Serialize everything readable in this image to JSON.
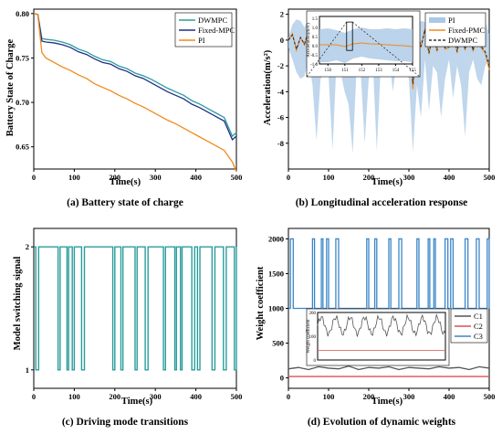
{
  "chart_data": [
    {
      "id": "a",
      "type": "line",
      "caption": "(a) Battery state of charge",
      "xlabel": "Time(s)",
      "ylabel": "Battery State of Charge",
      "xlim": [
        0,
        500
      ],
      "ylim": [
        0.625,
        0.805
      ],
      "xticks": [
        0,
        100,
        200,
        300,
        400,
        500
      ],
      "yticks": [
        0.65,
        0.7,
        0.75,
        0.8
      ],
      "yticklabels": [
        "0.65",
        "0.70",
        "0.75",
        "0.80"
      ],
      "legend": "top-right",
      "series": [
        {
          "name": "DWMPC",
          "color": "#2a9d9b",
          "x": [
            0,
            10,
            20,
            30,
            50,
            70,
            90,
            110,
            130,
            150,
            170,
            190,
            210,
            230,
            250,
            270,
            290,
            310,
            330,
            350,
            370,
            390,
            410,
            430,
            450,
            470,
            490,
            500
          ],
          "y": [
            0.8,
            0.799,
            0.772,
            0.771,
            0.77,
            0.768,
            0.765,
            0.76,
            0.757,
            0.752,
            0.748,
            0.746,
            0.741,
            0.738,
            0.733,
            0.73,
            0.726,
            0.721,
            0.716,
            0.712,
            0.708,
            0.702,
            0.698,
            0.693,
            0.688,
            0.683,
            0.662,
            0.666
          ]
        },
        {
          "name": "Fixed-MPC",
          "color": "#1f2f8a",
          "x": [
            0,
            10,
            20,
            30,
            50,
            70,
            90,
            110,
            130,
            150,
            170,
            190,
            210,
            230,
            250,
            270,
            290,
            310,
            330,
            350,
            370,
            390,
            410,
            430,
            450,
            470,
            490,
            500
          ],
          "y": [
            0.8,
            0.799,
            0.769,
            0.768,
            0.767,
            0.765,
            0.762,
            0.757,
            0.754,
            0.749,
            0.745,
            0.743,
            0.738,
            0.735,
            0.73,
            0.727,
            0.722,
            0.717,
            0.712,
            0.708,
            0.704,
            0.698,
            0.694,
            0.689,
            0.684,
            0.679,
            0.658,
            0.662
          ]
        },
        {
          "name": "PI",
          "color": "#f08a1c",
          "x": [
            0,
            10,
            20,
            30,
            50,
            70,
            90,
            110,
            130,
            150,
            170,
            190,
            210,
            230,
            250,
            270,
            290,
            310,
            330,
            350,
            370,
            390,
            410,
            430,
            450,
            470,
            490,
            500
          ],
          "y": [
            0.8,
            0.799,
            0.756,
            0.75,
            0.745,
            0.74,
            0.736,
            0.731,
            0.727,
            0.721,
            0.717,
            0.713,
            0.708,
            0.704,
            0.699,
            0.695,
            0.69,
            0.685,
            0.68,
            0.676,
            0.671,
            0.666,
            0.661,
            0.656,
            0.651,
            0.646,
            0.633,
            0.622
          ]
        }
      ]
    },
    {
      "id": "b",
      "type": "line",
      "caption": "(b) Longitudinal acceleration response",
      "xlabel": "Time(s)",
      "ylabel": "Acceleration(m/s²)",
      "xlim": [
        0,
        500
      ],
      "ylim": [
        -10,
        2.4
      ],
      "xticks": [
        0,
        100,
        200,
        300,
        400,
        500
      ],
      "yticks": [
        -8,
        -6,
        -4,
        -2,
        0,
        2
      ],
      "legend": "top-right",
      "series": [
        {
          "name": "PI",
          "color": "#aac8e6",
          "style": "band",
          "x": [
            0,
            10,
            20,
            30,
            40,
            50,
            60,
            70,
            80,
            90,
            100,
            110,
            120,
            130,
            140,
            150,
            160,
            170,
            180,
            190,
            200,
            210,
            220,
            230,
            240,
            250,
            260,
            270,
            280,
            290,
            300,
            310,
            320,
            330,
            340,
            350,
            360,
            370,
            380,
            390,
            400,
            410,
            420,
            430,
            440,
            450,
            460,
            470,
            480,
            490,
            500
          ],
          "lower": [
            -0.6,
            -1.5,
            -2.5,
            -3.0,
            -2.8,
            -1.5,
            -3.5,
            -7.8,
            -3.0,
            -2.5,
            -2.8,
            -8.5,
            -1.5,
            -2.5,
            -4.0,
            -5.0,
            -8.8,
            -2.0,
            -2.5,
            -8.0,
            -3.0,
            -1.5,
            -8.6,
            -2.0,
            -2.5,
            -1.0,
            -4.0,
            -1.5,
            -2.0,
            -2.5,
            -3.0,
            -8.7,
            -3.5,
            -6.0,
            -1.5,
            -5.5,
            -2.0,
            -2.5,
            -6.0,
            -3.0,
            -1.5,
            -4.5,
            -2.0,
            -3.5,
            -7.5,
            -2.5,
            -1.5,
            -3.0,
            -3.5,
            -2.0,
            -1.5
          ],
          "upper": [
            0.2,
            1.2,
            1.6,
            1.5,
            1.0,
            1.6,
            1.5,
            1.4,
            1.0,
            1.6,
            1.3,
            1.4,
            1.0,
            1.6,
            0.9,
            1.3,
            1.6,
            1.0,
            1.5,
            1.2,
            1.6,
            1.4,
            1.0,
            1.6,
            1.5,
            1.0,
            1.5,
            1.6,
            1.0,
            1.4,
            1.5,
            1.6,
            1.0,
            1.5,
            1.4,
            1.6,
            1.0,
            1.5,
            1.6,
            1.2,
            1.0,
            1.6,
            1.4,
            1.2,
            1.6,
            1.5,
            1.0,
            1.6,
            1.5,
            1.4,
            0.5
          ]
        },
        {
          "name": "Fixed-PMC",
          "color": "#f08a1c",
          "x": [
            0,
            10,
            20,
            30,
            40,
            50,
            60,
            70,
            80,
            90,
            100,
            110,
            120,
            130,
            140,
            150,
            160,
            170,
            180,
            190,
            200,
            210,
            220,
            230,
            240,
            250,
            260,
            270,
            280,
            290,
            300,
            310,
            320,
            330,
            340,
            350,
            360,
            370,
            380,
            390,
            400,
            410,
            420,
            430,
            440,
            450,
            460,
            470,
            480,
            490,
            500
          ],
          "y": [
            0,
            0.5,
            -0.8,
            0.2,
            -0.4,
            0.8,
            -1.0,
            1.0,
            -0.3,
            0.6,
            -1.2,
            0.9,
            -0.5,
            0.4,
            -1.0,
            -0.6,
            0.7,
            -0.8,
            0.8,
            -1.4,
            0.9,
            -0.6,
            0.8,
            -1.6,
            1.0,
            -0.8,
            0.6,
            -0.8,
            1.0,
            -0.9,
            0.5,
            -3.8,
            0.8,
            -0.6,
            0.9,
            -1.1,
            0.6,
            -0.9,
            1.0,
            -0.7,
            -0.6,
            0.8,
            -1.0,
            0.9,
            -0.8,
            0.6,
            -0.9,
            1.0,
            -0.6,
            -1.0,
            -2.3
          ]
        },
        {
          "name": "DWMPC",
          "color": "#333333",
          "dash": "3,2",
          "x": [
            0,
            10,
            20,
            30,
            40,
            50,
            60,
            70,
            80,
            90,
            100,
            110,
            120,
            130,
            140,
            150,
            160,
            170,
            180,
            190,
            200,
            210,
            220,
            230,
            240,
            250,
            260,
            270,
            280,
            290,
            300,
            310,
            320,
            330,
            340,
            350,
            360,
            370,
            380,
            390,
            400,
            410,
            420,
            430,
            440,
            450,
            460,
            470,
            480,
            490,
            500
          ],
          "y": [
            0,
            0.4,
            -0.7,
            0.2,
            -0.3,
            0.7,
            -0.9,
            0.9,
            -0.3,
            0.5,
            -1.0,
            0.8,
            -0.4,
            0.3,
            -0.9,
            -0.5,
            0.6,
            -0.7,
            0.7,
            -1.2,
            0.8,
            -0.5,
            0.7,
            -1.4,
            0.9,
            -0.7,
            0.5,
            -0.7,
            0.9,
            -0.8,
            0.4,
            -3.4,
            0.7,
            -0.5,
            0.8,
            -1.0,
            0.5,
            -0.8,
            0.9,
            -0.6,
            -0.5,
            0.7,
            -0.9,
            0.8,
            -0.7,
            0.5,
            -0.8,
            0.9,
            -0.5,
            -0.9,
            -2.0
          ]
        }
      ],
      "inset": {
        "ylabel": "Acceleration(m/s²)",
        "xlim": [
          149.5,
          155
        ],
        "ylim": [
          -1,
          1.6
        ],
        "xticks": [
          150,
          151,
          152,
          153,
          154,
          155
        ],
        "yticks": [
          -1.0,
          -0.5,
          0.0,
          0.5,
          1.0,
          1.5
        ],
        "yticklabels": [
          "-1.0",
          "-0.5",
          "0.0",
          "0.5",
          "1.0",
          "1.5"
        ],
        "x": [
          149.5,
          150,
          150.5,
          151,
          151.5,
          152,
          152.5,
          153,
          153.5,
          154,
          154.5,
          155
        ],
        "y": [
          0.05,
          0.05,
          0.05,
          -0.05,
          0.1,
          0.15,
          0.1,
          0.08,
          0.05,
          0.02,
          0.0,
          -0.05
        ],
        "lower": [
          -0.9,
          -0.9,
          -0.8,
          -0.95,
          -0.7,
          -0.6,
          -0.7,
          -0.75,
          -0.8,
          -0.85,
          -0.85,
          -0.9
        ],
        "upper": [
          0.9,
          0.95,
          0.85,
          0.7,
          0.9,
          1.0,
          0.9,
          0.9,
          0.95,
          0.9,
          0.95,
          0.9
        ]
      }
    },
    {
      "id": "c",
      "type": "line",
      "caption": "(c) Driving mode transitions",
      "xlabel": "Time(s)",
      "ylabel": "Model switching signal",
      "xlim": [
        0,
        500
      ],
      "ylim": [
        0.85,
        2.15
      ],
      "xticks": [
        0,
        100,
        200,
        300,
        400,
        500
      ],
      "yticks": [
        1,
        2
      ],
      "series": [
        {
          "name": "",
          "color": "#2a9d9b",
          "step": true,
          "x": [
            0,
            5,
            12,
            25,
            60,
            65,
            82,
            86,
            95,
            100,
            118,
            125,
            195,
            200,
            215,
            220,
            250,
            255,
            275,
            282,
            320,
            325,
            348,
            352,
            362,
            366,
            390,
            397,
            404,
            410,
            440,
            447,
            468,
            475,
            495,
            500
          ],
          "y": [
            2,
            1,
            2,
            2,
            1,
            2,
            1,
            2,
            1,
            2,
            1,
            2,
            1,
            2,
            1,
            2,
            1,
            2,
            1,
            2,
            1,
            2,
            1,
            2,
            1,
            2,
            1,
            2,
            1,
            2,
            1,
            2,
            1,
            2,
            1,
            2
          ]
        }
      ]
    },
    {
      "id": "d",
      "type": "line",
      "caption": "(d) Evolution of dynamic weights",
      "xlabel": "Time(s)",
      "ylabel": "Weight coefficient",
      "xlim": [
        0,
        500
      ],
      "ylim": [
        -150,
        2150
      ],
      "xticks": [
        0,
        100,
        200,
        300,
        400,
        500
      ],
      "yticks": [
        0,
        500,
        1000,
        1500,
        2000
      ],
      "legend": "right",
      "series": [
        {
          "name": "C1",
          "color": "#555555",
          "x": [
            0,
            25,
            50,
            75,
            100,
            125,
            150,
            175,
            200,
            225,
            250,
            275,
            300,
            325,
            350,
            375,
            400,
            425,
            450,
            475,
            500
          ],
          "y": [
            130,
            150,
            120,
            160,
            140,
            130,
            170,
            120,
            150,
            140,
            160,
            120,
            150,
            140,
            130,
            160,
            140,
            150,
            120,
            160,
            140
          ]
        },
        {
          "name": "C2",
          "color": "#d9534f",
          "x": [
            0,
            100,
            200,
            300,
            400,
            500
          ],
          "y": [
            20,
            20,
            20,
            20,
            20,
            20
          ]
        },
        {
          "name": "C3",
          "color": "#3a86c8",
          "step": true,
          "x": [
            0,
            5,
            12,
            60,
            65,
            82,
            86,
            95,
            100,
            118,
            125,
            195,
            200,
            215,
            220,
            250,
            255,
            275,
            282,
            320,
            325,
            348,
            352,
            362,
            366,
            390,
            397,
            404,
            410,
            440,
            447,
            468,
            475,
            495,
            500
          ],
          "y": [
            1000,
            2000,
            1000,
            2000,
            1000,
            2000,
            1000,
            2000,
            1000,
            2000,
            1000,
            2000,
            1000,
            2000,
            1000,
            2000,
            1000,
            2000,
            1000,
            2000,
            1000,
            2000,
            1000,
            2000,
            1000,
            2000,
            1000,
            2000,
            1000,
            2000,
            1000,
            2000,
            1000,
            2000,
            1000
          ]
        }
      ],
      "inset": {
        "ylabel": "Weight coefficient",
        "yticks": [
          0,
          100,
          200
        ],
        "xlim": [
          0,
          500
        ],
        "ylim": [
          0,
          200
        ]
      }
    }
  ]
}
